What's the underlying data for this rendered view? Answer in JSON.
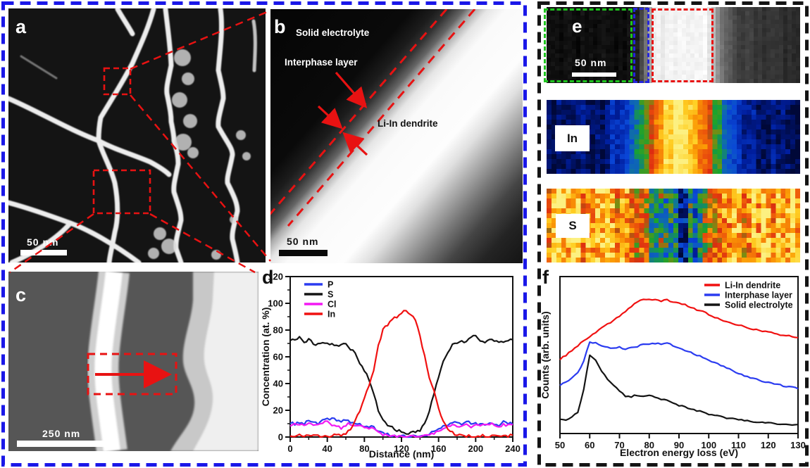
{
  "figure": {
    "left_group_border": "#1a17e8",
    "right_group_border": "#141414",
    "annotation_red": "#e81212",
    "annotation_green": "#1ec41e",
    "annotation_blue": "#2525dd"
  },
  "panels": {
    "a": {
      "label": "a",
      "scale_bar": "50 nm"
    },
    "b": {
      "label": "b",
      "scale_bar": "50 nm",
      "annotations": {
        "solid_electrolyte": "Solid electrolyte",
        "interphase_layer": "Interphase layer",
        "li_in_dendrite": "Li-In dendrite"
      }
    },
    "c": {
      "label": "c",
      "scale_bar": "250 nm"
    },
    "d": {
      "label": "d"
    },
    "e": {
      "label": "e",
      "scale_bar": "50 nm",
      "map_labels": {
        "in": "In",
        "s": "S"
      }
    },
    "f": {
      "label": "f"
    }
  },
  "chart_data": [
    {
      "id": "panel-d",
      "type": "line",
      "xlabel": "Distance (nm)",
      "ylabel": "Concentration (at. %)",
      "xlim": [
        0,
        240
      ],
      "ylim": [
        0,
        120
      ],
      "xticks": [
        0,
        40,
        80,
        120,
        160,
        200,
        240
      ],
      "yticks": [
        0,
        20,
        40,
        60,
        80,
        100,
        120
      ],
      "x_minor_step": 20,
      "y_minor_step": 10,
      "grid": false,
      "legend_position": "top-left",
      "x": [
        0,
        5,
        10,
        15,
        20,
        25,
        30,
        35,
        40,
        45,
        50,
        55,
        60,
        65,
        70,
        75,
        80,
        85,
        90,
        95,
        100,
        105,
        110,
        115,
        120,
        125,
        130,
        135,
        140,
        145,
        150,
        155,
        160,
        165,
        170,
        175,
        180,
        185,
        190,
        195,
        200,
        205,
        210,
        215,
        220,
        225,
        230,
        235,
        240
      ],
      "series": [
        {
          "name": "P",
          "color": "#2b3cf0",
          "values": [
            10,
            10,
            11,
            10,
            12,
            11,
            10,
            12,
            13,
            14,
            13,
            12,
            13,
            11,
            10,
            9,
            8,
            8,
            7,
            5,
            3,
            2,
            1,
            1,
            0,
            1,
            0,
            1,
            0,
            1,
            2,
            4,
            7,
            8,
            9,
            10,
            11,
            10,
            12,
            10,
            11,
            9,
            10,
            11,
            10,
            9,
            11,
            10,
            10
          ]
        },
        {
          "name": "S",
          "color": "#141414",
          "values": [
            73,
            72,
            74,
            71,
            73,
            70,
            69,
            71,
            70,
            70,
            68,
            70,
            69,
            66,
            62,
            55,
            50,
            43,
            32,
            20,
            13,
            9,
            7,
            5,
            4,
            3,
            3,
            4,
            5,
            10,
            20,
            33,
            45,
            56,
            64,
            69,
            70,
            71,
            72,
            74,
            77,
            72,
            71,
            73,
            71,
            72,
            70,
            72,
            73
          ]
        },
        {
          "name": "Cl",
          "color": "#f318f3",
          "values": [
            9,
            10,
            9,
            9,
            10,
            9,
            10,
            11,
            12,
            9,
            8,
            7,
            9,
            10,
            9,
            9,
            8,
            7,
            6,
            4,
            2,
            1,
            1,
            0,
            0,
            0,
            1,
            0,
            1,
            1,
            2,
            3,
            5,
            7,
            8,
            9,
            8,
            9,
            10,
            8,
            9,
            8,
            9,
            10,
            9,
            8,
            9,
            9,
            10
          ]
        },
        {
          "name": "In",
          "color": "#f01111",
          "values": [
            1,
            1,
            1,
            1,
            1,
            1,
            1,
            1,
            1,
            1,
            1,
            1,
            3,
            6,
            12,
            20,
            30,
            38,
            50,
            68,
            80,
            84,
            88,
            90,
            93,
            95,
            91,
            88,
            75,
            60,
            45,
            35,
            22,
            12,
            6,
            3,
            1,
            1,
            0,
            1,
            0,
            1,
            1,
            0,
            1,
            1,
            1,
            1,
            1
          ]
        }
      ]
    },
    {
      "id": "panel-f",
      "type": "line",
      "xlabel": "Electron energy loss (eV)",
      "ylabel": "Counts (arb. units)",
      "xlim": [
        50,
        130
      ],
      "ylim": [
        0,
        1
      ],
      "xticks": [
        50,
        60,
        70,
        80,
        90,
        100,
        110,
        120,
        130
      ],
      "yticks": [],
      "grid": false,
      "legend_position": "top-right",
      "x": [
        50,
        52,
        54,
        56,
        58,
        60,
        62,
        64,
        66,
        68,
        70,
        72,
        74,
        76,
        78,
        80,
        82,
        84,
        86,
        88,
        90,
        92,
        94,
        96,
        98,
        100,
        102,
        104,
        106,
        108,
        110,
        112,
        114,
        116,
        118,
        120,
        122,
        124,
        126,
        128,
        130
      ],
      "series": [
        {
          "name": "Li-In dendrite",
          "color": "#f01111",
          "values": [
            0.47,
            0.5,
            0.53,
            0.56,
            0.59,
            0.615,
            0.645,
            0.67,
            0.695,
            0.72,
            0.75,
            0.78,
            0.81,
            0.84,
            0.855,
            0.85,
            0.855,
            0.845,
            0.85,
            0.84,
            0.83,
            0.82,
            0.805,
            0.79,
            0.775,
            0.76,
            0.74,
            0.725,
            0.71,
            0.7,
            0.69,
            0.68,
            0.67,
            0.662,
            0.652,
            0.645,
            0.638,
            0.63,
            0.625,
            0.618,
            0.612
          ]
        },
        {
          "name": "Interphase layer",
          "color": "#2b3cf0",
          "values": [
            0.31,
            0.325,
            0.35,
            0.39,
            0.46,
            0.585,
            0.575,
            0.56,
            0.55,
            0.545,
            0.55,
            0.54,
            0.545,
            0.555,
            0.565,
            0.57,
            0.575,
            0.57,
            0.575,
            0.56,
            0.545,
            0.53,
            0.515,
            0.5,
            0.485,
            0.47,
            0.45,
            0.435,
            0.42,
            0.4,
            0.385,
            0.37,
            0.355,
            0.345,
            0.335,
            0.325,
            0.315,
            0.308,
            0.3,
            0.295,
            0.29
          ]
        },
        {
          "name": "Solid electrolyte",
          "color": "#141414",
          "values": [
            0.095,
            0.085,
            0.105,
            0.135,
            0.28,
            0.5,
            0.47,
            0.4,
            0.345,
            0.31,
            0.27,
            0.24,
            0.235,
            0.245,
            0.24,
            0.245,
            0.235,
            0.22,
            0.21,
            0.195,
            0.18,
            0.17,
            0.155,
            0.145,
            0.135,
            0.125,
            0.115,
            0.11,
            0.1,
            0.095,
            0.09,
            0.085,
            0.08,
            0.075,
            0.072,
            0.068,
            0.065,
            0.062,
            0.06,
            0.058,
            0.056
          ]
        }
      ]
    },
    {
      "id": "map-in",
      "type": "heatmap",
      "element": "In",
      "band_center_frac": 0.525,
      "band_sigma_frac": 0.12,
      "background_value": 0.05,
      "peak_value": 1.0,
      "noise": 0.05,
      "cols": 52,
      "rows": 15,
      "seed": 11
    },
    {
      "id": "map-s",
      "type": "heatmap",
      "element": "S",
      "band_center_frac": 0.525,
      "band_sigma_frac": 0.1,
      "background_value": 0.85,
      "center_value": 0.24,
      "noise": 0.13,
      "cols": 52,
      "rows": 15,
      "seed": 23
    },
    {
      "id": "strip-e",
      "type": "grayscale-profile",
      "cols": 60,
      "rows": 18,
      "noise": 0.025,
      "seed": 5,
      "profile": [
        [
          0,
          0.05
        ],
        [
          0.33,
          0.06
        ],
        [
          0.355,
          0.1
        ],
        [
          0.4,
          0.55
        ],
        [
          0.425,
          0.93
        ],
        [
          0.63,
          0.97
        ],
        [
          0.655,
          0.75
        ],
        [
          0.7,
          0.4
        ],
        [
          0.76,
          0.26
        ],
        [
          0.87,
          0.2
        ],
        [
          1,
          0.15
        ]
      ]
    }
  ],
  "colormap_stops": [
    [
      0,
      "#000838"
    ],
    [
      0.12,
      "#001e9e"
    ],
    [
      0.25,
      "#0a46d8"
    ],
    [
      0.36,
      "#0f6ab0"
    ],
    [
      0.46,
      "#18a42e"
    ],
    [
      0.55,
      "#7d8c12"
    ],
    [
      0.63,
      "#dd2d10"
    ],
    [
      0.72,
      "#ee5c0a"
    ],
    [
      0.82,
      "#fb9b05"
    ],
    [
      0.91,
      "#ffd025"
    ],
    [
      1,
      "#fcf081"
    ]
  ]
}
